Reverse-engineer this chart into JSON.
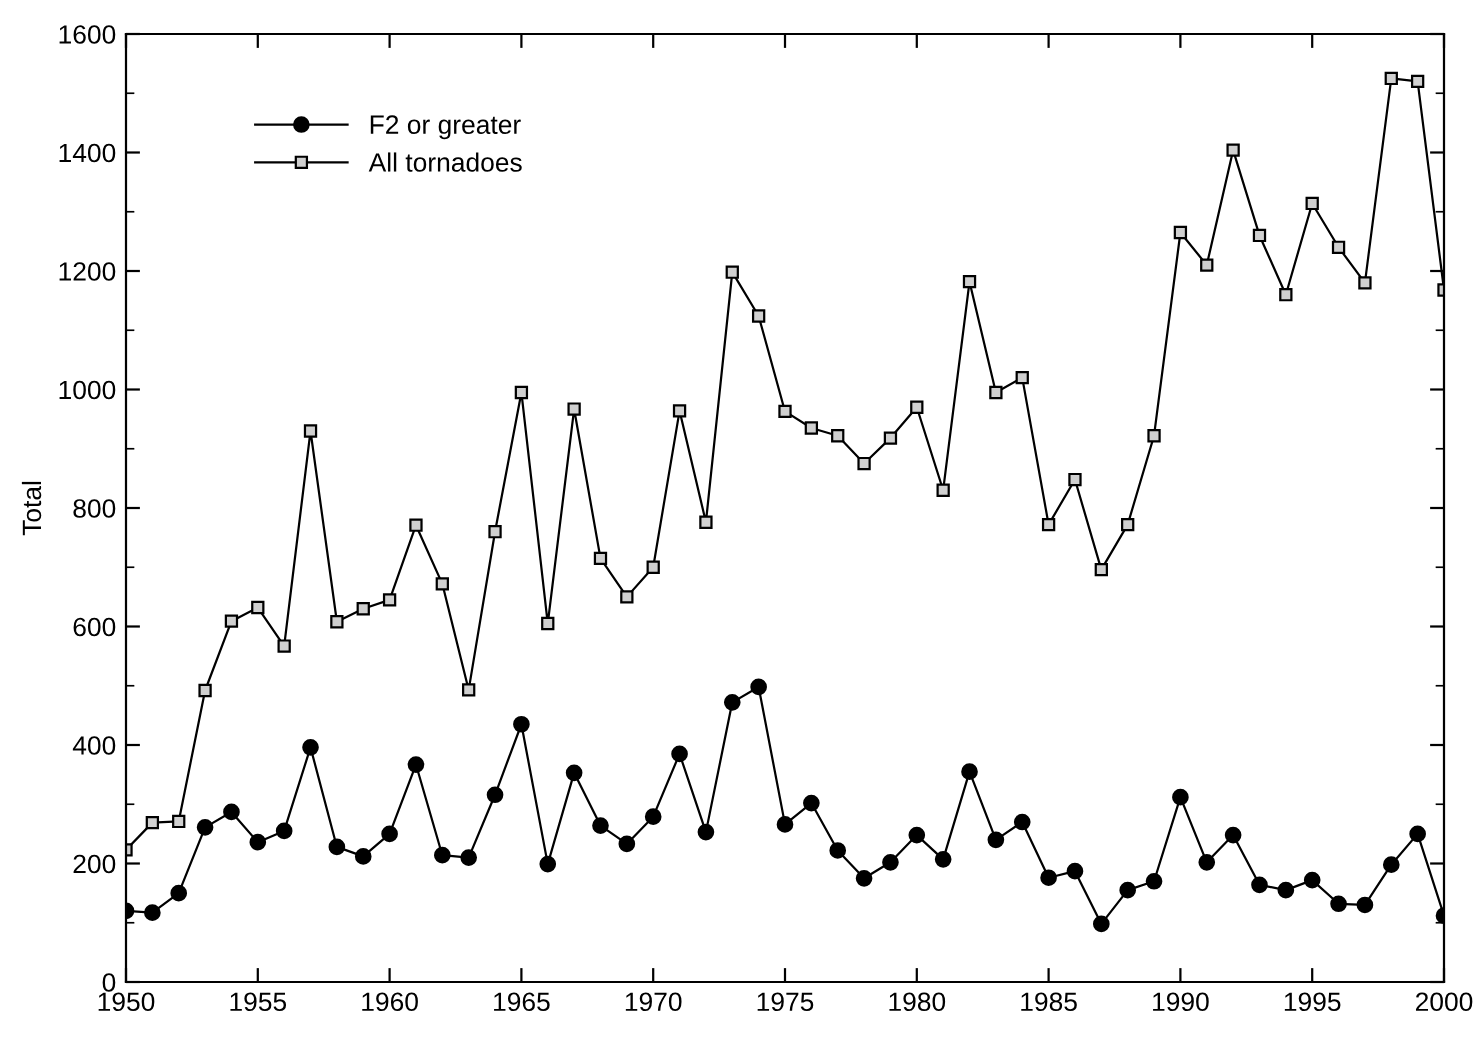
{
  "chart_data": {
    "type": "line",
    "ylabel": "Total",
    "x": [
      1950,
      1951,
      1952,
      1953,
      1954,
      1955,
      1956,
      1957,
      1958,
      1959,
      1960,
      1961,
      1962,
      1963,
      1964,
      1965,
      1966,
      1967,
      1968,
      1969,
      1970,
      1971,
      1972,
      1973,
      1974,
      1975,
      1976,
      1977,
      1978,
      1979,
      1980,
      1981,
      1982,
      1983,
      1984,
      1985,
      1986,
      1987,
      1988,
      1989,
      1990,
      1991,
      1992,
      1993,
      1994,
      1995,
      1996,
      1997,
      1998,
      1999,
      2000
    ],
    "series": [
      {
        "name": "F2 or greater",
        "color": "#000000",
        "marker": "circle",
        "values": [
          120,
          117,
          150,
          261,
          287,
          236,
          255,
          396,
          228,
          212,
          250,
          367,
          214,
          210,
          316,
          435,
          199,
          353,
          264,
          233,
          279,
          385,
          253,
          472,
          498,
          266,
          302,
          222,
          175,
          202,
          248,
          207,
          355,
          240,
          270,
          176,
          187,
          98,
          155,
          170,
          312,
          202,
          248,
          164,
          155,
          172,
          132,
          130,
          198,
          250,
          112
        ]
      },
      {
        "name": "All tornadoes",
        "color": "#000000",
        "marker": "square",
        "values": [
          223,
          269,
          271,
          492,
          609,
          632,
          567,
          930,
          608,
          630,
          645,
          771,
          672,
          493,
          760,
          995,
          605,
          967,
          715,
          650,
          700,
          964,
          776,
          1198,
          1124,
          963,
          935,
          922,
          875,
          918,
          970,
          830,
          1182,
          995,
          1020,
          772,
          848,
          696,
          772,
          922,
          1265,
          1210,
          1404,
          1260,
          1160,
          1314,
          1240,
          1180,
          1525,
          1520,
          1168
        ]
      }
    ],
    "xlim": [
      1950,
      2000
    ],
    "xticks": [
      1950,
      1955,
      1960,
      1965,
      1970,
      1975,
      1980,
      1985,
      1990,
      1995,
      2000
    ],
    "ylim": [
      0,
      1600
    ],
    "yticks": [
      0,
      200,
      400,
      600,
      800,
      1000,
      1200,
      1400,
      1600
    ],
    "grid": false,
    "legend": "top left",
    "line_style": "solid"
  }
}
